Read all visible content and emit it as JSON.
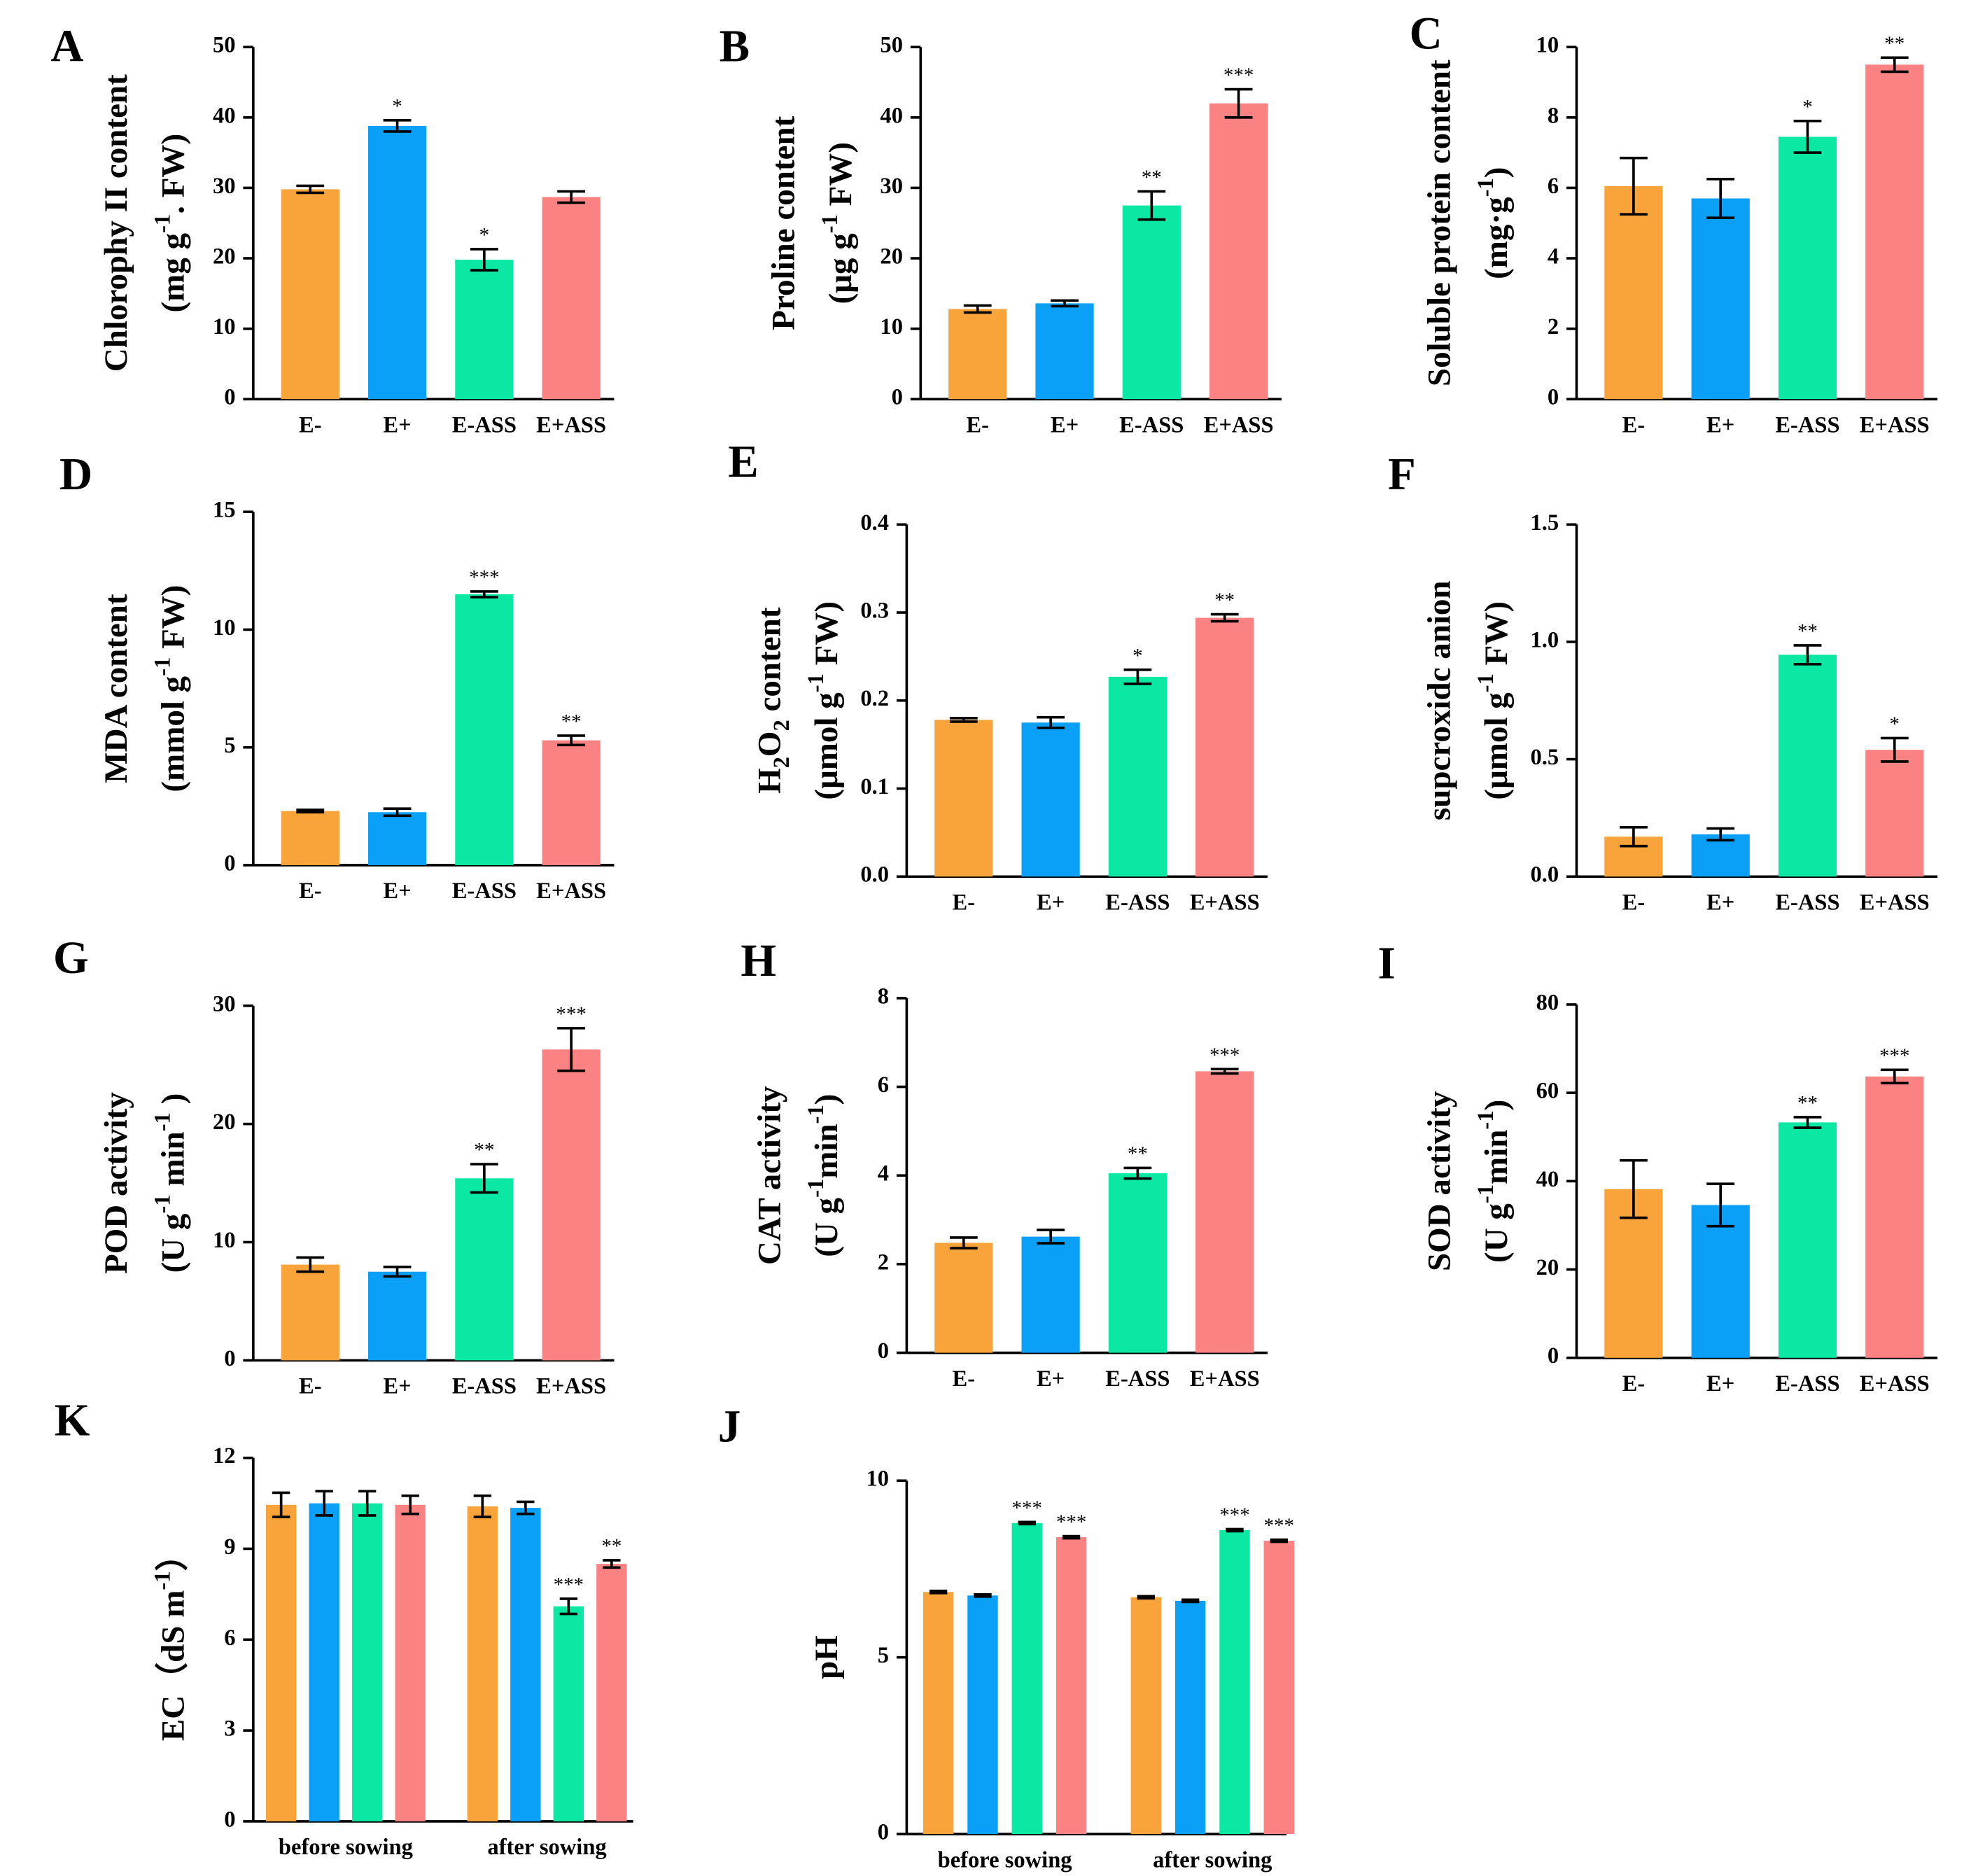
{
  "chart_data": [
    {
      "type": "bar",
      "label": "A",
      "ylabel": [
        [
          "Chlorophy II content"
        ],
        [
          "(mg g",
          {
            "sup": "-1"
          },
          ". FW)"
        ]
      ],
      "categories": [
        "E-",
        "E+",
        "E-ASS",
        "E+ASS"
      ],
      "values": [
        29.8,
        38.8,
        19.8,
        28.7
      ],
      "errors": [
        0.5,
        0.8,
        1.5,
        0.8
      ],
      "annotations": [
        null,
        "*",
        "*",
        null
      ],
      "colors": [
        "#f9a43a",
        "#0aa0f7",
        "#0be8a4",
        "#fb8282"
      ],
      "ylim": [
        0,
        50
      ],
      "yticks": [
        0,
        10,
        20,
        30,
        40,
        50
      ]
    },
    {
      "type": "bar",
      "label": "B",
      "ylabel": [
        [
          "Proline content"
        ],
        [
          "(μg g",
          {
            "sup": "-1"
          },
          "  FW)"
        ]
      ],
      "categories": [
        "E-",
        "E+",
        "E-ASS",
        "E+ASS"
      ],
      "values": [
        12.8,
        13.6,
        27.5,
        42.0
      ],
      "errors": [
        0.5,
        0.4,
        2.0,
        2.0
      ],
      "annotations": [
        null,
        null,
        "**",
        "***"
      ],
      "colors": [
        "#f9a43a",
        "#0aa0f7",
        "#0be8a4",
        "#fb8282"
      ],
      "ylim": [
        0,
        50
      ],
      "yticks": [
        0,
        10,
        20,
        30,
        40,
        50
      ]
    },
    {
      "type": "bar",
      "label": "C",
      "ylabel": [
        [
          "Soluble protein content"
        ],
        [
          "(mg·g",
          {
            "sup": "-1"
          },
          ")"
        ]
      ],
      "categories": [
        "E-",
        "E+",
        "E-ASS",
        "E+ASS"
      ],
      "values": [
        6.05,
        5.7,
        7.45,
        9.5
      ],
      "errors": [
        0.8,
        0.55,
        0.45,
        0.2
      ],
      "annotations": [
        null,
        null,
        "*",
        "**"
      ],
      "colors": [
        "#f9a43a",
        "#0aa0f7",
        "#0be8a4",
        "#fb8282"
      ],
      "ylim": [
        0,
        10
      ],
      "yticks": [
        0,
        2,
        4,
        6,
        8,
        10
      ]
    },
    {
      "type": "bar",
      "label": "D",
      "ylabel": [
        [
          "MDA content"
        ],
        [
          "(mmol g",
          {
            "sup": "-1"
          },
          " FW)"
        ]
      ],
      "categories": [
        "E-",
        "E+",
        "E-ASS",
        "E+ASS"
      ],
      "values": [
        2.3,
        2.25,
        11.5,
        5.3
      ],
      "errors": [
        0.05,
        0.15,
        0.12,
        0.2
      ],
      "annotations": [
        null,
        null,
        "***",
        "**"
      ],
      "colors": [
        "#f9a43a",
        "#0aa0f7",
        "#0be8a4",
        "#fb8282"
      ],
      "ylim": [
        0,
        15
      ],
      "yticks": [
        0,
        5,
        10,
        15
      ]
    },
    {
      "type": "bar",
      "label": "E",
      "ylabel": [
        [
          "H",
          {
            "sub": "2"
          },
          "O",
          {
            "sub": "2"
          },
          " content"
        ],
        [
          "(μmol g",
          {
            "sup": "-1"
          },
          " FW)"
        ]
      ],
      "categories": [
        "E-",
        "E+",
        "E-ASS",
        "E+ASS"
      ],
      "values": [
        0.178,
        0.175,
        0.227,
        0.294
      ],
      "errors": [
        0.002,
        0.006,
        0.008,
        0.004
      ],
      "annotations": [
        null,
        null,
        "*",
        "**"
      ],
      "colors": [
        "#f9a43a",
        "#0aa0f7",
        "#0be8a4",
        "#fb8282"
      ],
      "ylim": [
        0,
        0.4
      ],
      "yticks": [
        {
          "value": 0,
          "label": "0.0"
        },
        0.1,
        0.2,
        0.3,
        0.4
      ]
    },
    {
      "type": "bar",
      "label": "F",
      "ylabel": [
        [
          "supcroxidc anion"
        ],
        [
          "(μmol g",
          {
            "sup": "-1"
          },
          " FW)"
        ]
      ],
      "categories": [
        "E-",
        "E+",
        "E-ASS",
        "E+ASS"
      ],
      "values": [
        0.17,
        0.18,
        0.945,
        0.54
      ],
      "errors": [
        0.04,
        0.025,
        0.04,
        0.05
      ],
      "annotations": [
        null,
        null,
        "**",
        "*"
      ],
      "colors": [
        "#f9a43a",
        "#0aa0f7",
        "#0be8a4",
        "#fb8282"
      ],
      "ylim": [
        0,
        1.5
      ],
      "yticks": [
        {
          "value": 0,
          "label": "0.0"
        },
        0.5,
        {
          "value": 1,
          "label": "1.0"
        },
        1.5
      ]
    },
    {
      "type": "bar",
      "label": "G",
      "ylabel": [
        [
          "POD activity"
        ],
        [
          "(U g",
          {
            "sup": "-1"
          },
          " min",
          {
            "sup": "-1"
          },
          " )"
        ]
      ],
      "categories": [
        "E-",
        "E+",
        "E-ASS",
        "E+ASS"
      ],
      "values": [
        8.1,
        7.5,
        15.4,
        26.3
      ],
      "errors": [
        0.6,
        0.4,
        1.2,
        1.8
      ],
      "annotations": [
        null,
        null,
        "**",
        "***"
      ],
      "colors": [
        "#f9a43a",
        "#0aa0f7",
        "#0be8a4",
        "#fb8282"
      ],
      "ylim": [
        0,
        30
      ],
      "yticks": [
        0,
        10,
        20,
        30
      ]
    },
    {
      "type": "bar",
      "label": "H",
      "ylabel": [
        [
          "CAT activity"
        ],
        [
          "(U g",
          {
            "sup": "-1"
          },
          "min",
          {
            "sup": "-1"
          },
          ")"
        ]
      ],
      "categories": [
        "E-",
        "E+",
        "E-ASS",
        "E+ASS"
      ],
      "values": [
        2.48,
        2.62,
        4.05,
        6.35
      ],
      "errors": [
        0.12,
        0.15,
        0.12,
        0.05
      ],
      "annotations": [
        null,
        null,
        "**",
        "***"
      ],
      "colors": [
        "#f9a43a",
        "#0aa0f7",
        "#0be8a4",
        "#fb8282"
      ],
      "ylim": [
        0,
        8
      ],
      "yticks": [
        0,
        2,
        4,
        6,
        8
      ]
    },
    {
      "type": "bar",
      "label": "I",
      "ylabel": [
        [
          "SOD activity"
        ],
        [
          "(U g",
          {
            "sup": "-1"
          },
          "min",
          {
            "sup": "-1"
          },
          ")"
        ]
      ],
      "categories": [
        "E-",
        "E+",
        "E-ASS",
        "E+ASS"
      ],
      "values": [
        38.2,
        34.6,
        53.3,
        63.7
      ],
      "errors": [
        6.5,
        4.8,
        1.2,
        1.5
      ],
      "annotations": [
        null,
        null,
        "**",
        "***"
      ],
      "colors": [
        "#f9a43a",
        "#0aa0f7",
        "#0be8a4",
        "#fb8282"
      ],
      "ylim": [
        0,
        80
      ],
      "yticks": [
        0,
        20,
        40,
        60,
        80
      ]
    },
    {
      "type": "bar",
      "label": "K",
      "ylabel": [
        [
          "EC（dS m",
          {
            "sup": "-1"
          },
          "）"
        ]
      ],
      "categories": [
        "before sowing",
        "after sowing"
      ],
      "series": [
        {
          "color": "#f9a43a",
          "values": [
            10.45,
            10.4
          ],
          "errors": [
            0.4,
            0.35
          ],
          "annotations": [
            null,
            null
          ]
        },
        {
          "color": "#0aa0f7",
          "values": [
            10.5,
            10.35
          ],
          "errors": [
            0.4,
            0.2
          ],
          "annotations": [
            null,
            null
          ]
        },
        {
          "color": "#0be8a4",
          "values": [
            10.5,
            7.1
          ],
          "errors": [
            0.4,
            0.25
          ],
          "annotations": [
            null,
            "***"
          ]
        },
        {
          "color": "#fb8282",
          "values": [
            10.45,
            8.5
          ],
          "errors": [
            0.3,
            0.12
          ],
          "annotations": [
            null,
            "**"
          ]
        }
      ],
      "ylim": [
        0,
        12
      ],
      "yticks": [
        0,
        3,
        6,
        9,
        12
      ]
    },
    {
      "type": "bar",
      "label": "J",
      "ylabel": [
        [
          "pH"
        ]
      ],
      "categories": [
        "before sowing",
        "after sowing"
      ],
      "series": [
        {
          "color": "#f9a43a",
          "values": [
            6.85,
            6.7
          ],
          "errors": [
            0.03,
            0.03
          ],
          "annotations": [
            null,
            null
          ]
        },
        {
          "color": "#0aa0f7",
          "values": [
            6.75,
            6.6
          ],
          "errors": [
            0.03,
            0.03
          ],
          "annotations": [
            null,
            null
          ]
        },
        {
          "color": "#0be8a4",
          "values": [
            8.8,
            8.6
          ],
          "errors": [
            0.03,
            0.03
          ],
          "annotations": [
            "***",
            "***"
          ]
        },
        {
          "color": "#fb8282",
          "values": [
            8.4,
            8.3
          ],
          "errors": [
            0.03,
            0.03
          ],
          "annotations": [
            "***",
            "***"
          ]
        }
      ],
      "ylim": [
        0,
        10
      ],
      "yticks": [
        0,
        5,
        10
      ]
    }
  ]
}
